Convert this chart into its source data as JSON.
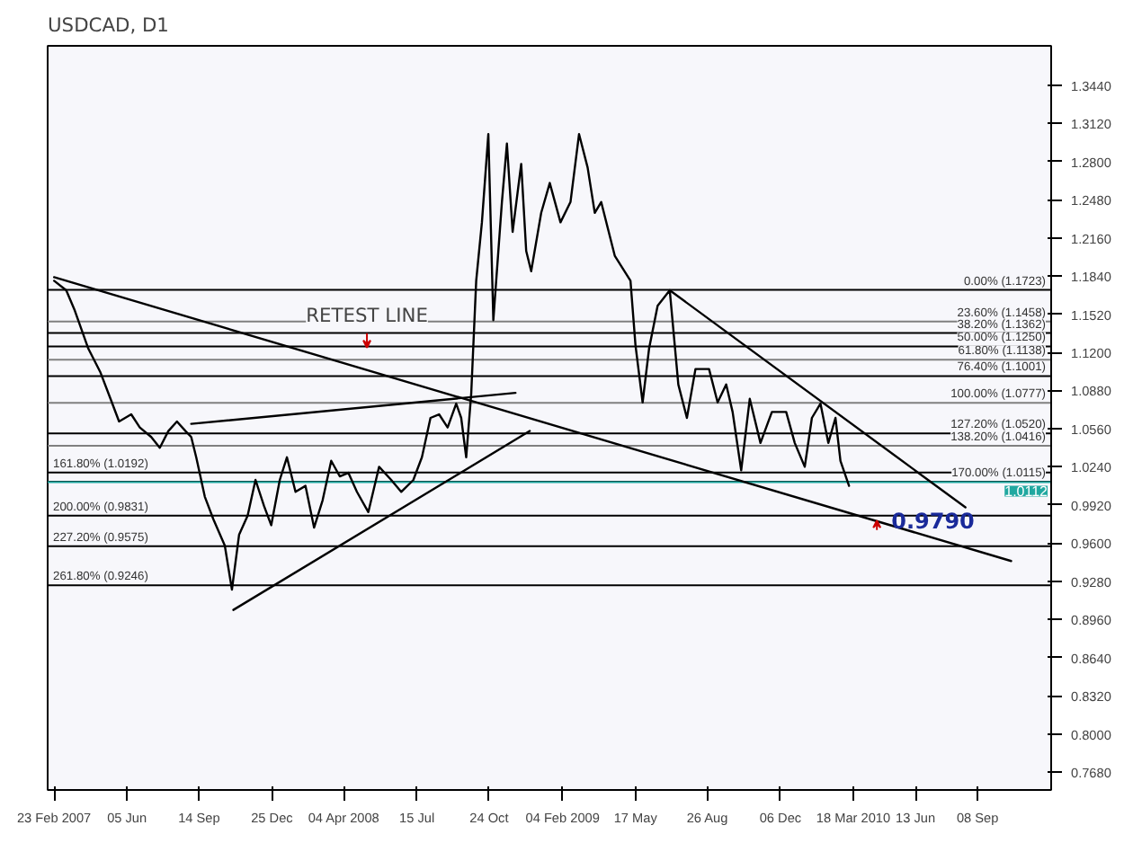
{
  "chart_data": {
    "type": "line",
    "title": "USDCAD, D1",
    "xlim": [
      "2007-02-14",
      "2010-12-20"
    ],
    "ylim": [
      0.753,
      1.377
    ],
    "xticks": [
      {
        "value": "2007-02-23",
        "label": "23 Feb 2007"
      },
      {
        "value": "2007-06-05",
        "label": "05 Jun"
      },
      {
        "value": "2007-09-14",
        "label": "14 Sep"
      },
      {
        "value": "2007-12-25",
        "label": "25 Dec"
      },
      {
        "value": "2008-04-04",
        "label": "04 Apr 2008"
      },
      {
        "value": "2008-07-15",
        "label": "15 Jul"
      },
      {
        "value": "2008-10-24",
        "label": "24 Oct"
      },
      {
        "value": "2009-02-04",
        "label": "04 Feb 2009"
      },
      {
        "value": "2009-05-17",
        "label": "17 May"
      },
      {
        "value": "2009-08-26",
        "label": "26 Aug"
      },
      {
        "value": "2009-12-06",
        "label": "06 Dec"
      },
      {
        "value": "2010-03-18",
        "label": "18 Mar 2010"
      },
      {
        "value": "2010-06-13",
        "label": "13 Jun"
      },
      {
        "value": "2010-09-08",
        "label": "08 Sep"
      }
    ],
    "yticks": [
      {
        "value": 1.344,
        "label": "1.3440"
      },
      {
        "value": 1.312,
        "label": "1.3120"
      },
      {
        "value": 1.28,
        "label": "1.2800"
      },
      {
        "value": 1.248,
        "label": "1.2480"
      },
      {
        "value": 1.216,
        "label": "1.2160"
      },
      {
        "value": 1.184,
        "label": "1.1840"
      },
      {
        "value": 1.152,
        "label": "1.1520"
      },
      {
        "value": 1.12,
        "label": "1.1200"
      },
      {
        "value": 1.088,
        "label": "1.0880"
      },
      {
        "value": 1.056,
        "label": "1.0560"
      },
      {
        "value": 1.024,
        "label": "1.0240"
      },
      {
        "value": 0.992,
        "label": "0.9920"
      },
      {
        "value": 0.96,
        "label": "0.9600"
      },
      {
        "value": 0.928,
        "label": "0.9280"
      },
      {
        "value": 0.896,
        "label": "0.8960"
      },
      {
        "value": 0.864,
        "label": "0.8640"
      },
      {
        "value": 0.832,
        "label": "0.8320"
      },
      {
        "value": 0.8,
        "label": "0.8000"
      },
      {
        "value": 0.768,
        "label": "0.7680"
      }
    ],
    "series": [
      {
        "color": "#000000",
        "x": [
          "2007-02-23",
          "2007-03-12",
          "2007-03-24",
          "2007-04-12",
          "2007-04-29",
          "2007-05-13",
          "2007-05-25",
          "2007-06-11",
          "2007-06-23",
          "2007-07-09",
          "2007-07-21",
          "2007-08-02",
          "2007-08-14",
          "2007-08-26",
          "2007-09-03",
          "2007-09-10",
          "2007-09-22",
          "2007-10-04",
          "2007-10-20",
          "2007-10-30",
          "2007-11-09",
          "2007-11-21",
          "2007-12-02",
          "2007-12-14",
          "2007-12-24",
          "2008-01-05",
          "2008-01-15",
          "2008-01-27",
          "2008-02-10",
          "2008-02-22",
          "2008-03-05",
          "2008-03-17",
          "2008-03-29",
          "2008-04-10",
          "2008-04-22",
          "2008-05-08",
          "2008-05-23",
          "2008-06-09",
          "2008-06-23",
          "2008-07-10",
          "2008-07-22",
          "2008-08-03",
          "2008-08-15",
          "2008-08-27",
          "2008-09-08",
          "2008-09-15",
          "2008-09-22",
          "2008-09-29",
          "2008-10-06",
          "2008-10-14",
          "2008-10-23",
          "2008-10-30",
          "2008-11-11",
          "2008-11-18",
          "2008-11-26",
          "2008-12-08",
          "2008-12-15",
          "2008-12-22",
          "2009-01-05",
          "2009-01-17",
          "2009-02-01",
          "2009-02-15",
          "2009-02-27",
          "2009-03-11",
          "2009-03-21",
          "2009-03-30",
          "2009-04-18",
          "2009-05-10",
          "2009-05-17",
          "2009-05-27",
          "2009-06-05",
          "2009-06-17",
          "2009-07-04",
          "2009-07-16",
          "2009-07-28",
          "2009-08-09",
          "2009-08-28",
          "2009-09-09",
          "2009-09-21",
          "2009-09-30",
          "2009-10-12",
          "2009-10-24",
          "2009-11-08",
          "2009-11-24",
          "2009-12-14",
          "2009-12-26",
          "2010-01-09",
          "2010-01-19",
          "2010-01-31",
          "2010-02-11",
          "2010-02-21",
          "2010-02-28",
          "2010-03-12"
        ],
        "values": [
          1.18,
          1.172,
          1.155,
          1.123,
          1.103,
          1.081,
          1.062,
          1.068,
          1.057,
          1.049,
          1.04,
          1.054,
          1.062,
          1.054,
          1.049,
          1.032,
          0.999,
          0.98,
          0.958,
          0.921,
          0.967,
          0.983,
          1.013,
          0.991,
          0.975,
          1.013,
          1.032,
          1.003,
          1.008,
          0.973,
          0.996,
          1.029,
          1.016,
          1.019,
          1.003,
          0.986,
          1.024,
          1.013,
          1.003,
          1.013,
          1.032,
          1.065,
          1.068,
          1.057,
          1.077,
          1.065,
          1.032,
          1.085,
          1.18,
          1.229,
          1.303,
          1.147,
          1.246,
          1.295,
          1.221,
          1.278,
          1.205,
          1.188,
          1.237,
          1.262,
          1.229,
          1.246,
          1.303,
          1.275,
          1.237,
          1.246,
          1.201,
          1.18,
          1.126,
          1.078,
          1.123,
          1.159,
          1.172,
          1.093,
          1.065,
          1.106,
          1.106,
          1.078,
          1.093,
          1.07,
          1.021,
          1.081,
          1.044,
          1.07,
          1.07,
          1.044,
          1.024,
          1.065,
          1.077,
          1.044,
          1.065,
          1.029,
          1.008
        ]
      },
      {
        "color": "#000000",
        "x": [
          "2007-02-23",
          "2010-10-25"
        ],
        "values": [
          1.183,
          0.945
        ]
      },
      {
        "color": "#000000",
        "x": [
          "2007-09-03",
          "2008-11-30"
        ],
        "values": [
          1.06,
          1.086
        ]
      },
      {
        "color": "#000000",
        "x": [
          "2007-11-01",
          "2008-12-20"
        ],
        "values": [
          0.904,
          1.054
        ]
      },
      {
        "color": "#000000",
        "x": [
          "2009-07-04",
          "2010-08-22"
        ],
        "values": [
          1.172,
          0.99
        ]
      }
    ],
    "ref_lines": [
      {
        "axis": "y",
        "value": 1.1723,
        "label": "0.00% (1.1723)",
        "color": "#000000"
      },
      {
        "axis": "y",
        "value": 1.1458,
        "label": "23.60% (1.1458)",
        "color": "#808080"
      },
      {
        "axis": "y",
        "value": 1.1362,
        "label": "38.20% (1.1362)",
        "color": "#000000"
      },
      {
        "axis": "y",
        "value": 1.125,
        "label": "50.00% (1.1250)",
        "color": "#000000"
      },
      {
        "axis": "y",
        "value": 1.1138,
        "label": "61.80% (1.1138)",
        "color": "#808080"
      },
      {
        "axis": "y",
        "value": 1.1001,
        "label": "76.40% (1.1001)",
        "color": "#000000"
      },
      {
        "axis": "y",
        "value": 1.0777,
        "label": "100.00% (1.0777)",
        "color": "#808080"
      },
      {
        "axis": "y",
        "value": 1.052,
        "label": "127.20% (1.0520)",
        "color": "#000000"
      },
      {
        "axis": "y",
        "value": 1.0416,
        "label": "138.20% (1.0416)",
        "color": "#808080"
      },
      {
        "axis": "y",
        "value": 1.0192,
        "label": "161.80% (1.0192)",
        "color": "#000000"
      },
      {
        "axis": "y",
        "value": 1.0115,
        "label": "170.00% (1.0115)",
        "color": "#000000"
      },
      {
        "axis": "y",
        "value": 0.9831,
        "label": "200.00% (0.9831)",
        "color": "#000000"
      },
      {
        "axis": "y",
        "value": 0.9575,
        "label": "227.20% (0.9575)",
        "color": "#000000"
      },
      {
        "axis": "y",
        "value": 0.9246,
        "label": "261.80% (0.9246)",
        "color": "#000000"
      },
      {
        "axis": "y",
        "value": 1.0112,
        "label": "1.0112",
        "color": "#20a8a0"
      }
    ],
    "annotations": [
      {
        "text": "RETEST LINE",
        "x": "2008-05-06",
        "y": 1.126
      },
      {
        "text": "0.9790",
        "x": "2010-04-20",
        "y": 0.979
      }
    ],
    "grid": false
  }
}
